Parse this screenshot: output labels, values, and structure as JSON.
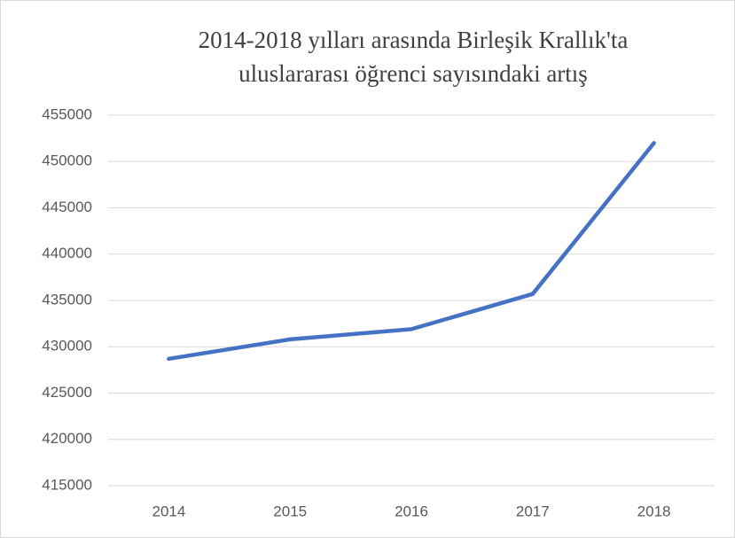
{
  "chart_data": {
    "type": "line",
    "title": [
      "2014-2018 yılları arasında Birleşik Krallık'ta",
      "uluslararası öğrenci sayısındaki artış"
    ],
    "categories": [
      "2014",
      "2015",
      "2016",
      "2017",
      "2018"
    ],
    "values": [
      428700,
      430800,
      431900,
      435700,
      452000
    ],
    "color": "#4472c4",
    "ylim": [
      415000,
      455000
    ],
    "yticks": [
      415000,
      420000,
      425000,
      430000,
      435000,
      440000,
      445000,
      450000,
      455000
    ],
    "grid": true
  }
}
